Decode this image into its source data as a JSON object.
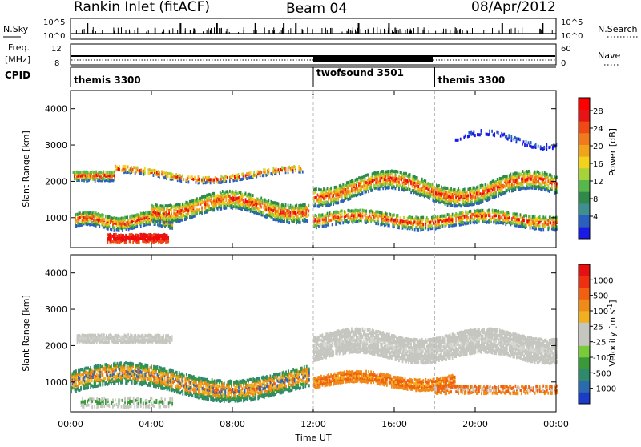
{
  "header": {
    "station": "Rankin Inlet (fitACF)",
    "beam": "Beam 04",
    "date": "08/Apr/2012"
  },
  "summary": {
    "nsky_label": "N.Sky",
    "nsearch_label": "N.Search",
    "nsky_ticks": [
      "10^5",
      "10^0"
    ],
    "nsearch_ticks": [
      "10^5",
      "10^0"
    ],
    "freq_label": "Freq.",
    "freq_unit": "[MHz]",
    "freq_ticks": [
      "12",
      "8"
    ],
    "nave_label": "Nave",
    "nave_ticks": [
      "60",
      "0"
    ],
    "cpid_label": "CPID",
    "cpid_segments": [
      {
        "name": "themis 3300",
        "start": 0,
        "end": 12
      },
      {
        "name": "twofsound 3501",
        "start": 12,
        "end": 18
      },
      {
        "name": "themis 3300",
        "start": 18,
        "end": 24
      }
    ]
  },
  "chart_data": [
    {
      "type": "heatmap",
      "panel": "power",
      "ylabel": "Slant Range [km]",
      "ylim": [
        180,
        4500
      ],
      "yticks": [
        1000,
        2000,
        3000,
        4000
      ],
      "xlim": [
        0,
        24
      ],
      "colorbar": {
        "label": "Power [dB]",
        "ticks": [
          "4",
          "8",
          "12",
          "16",
          "20",
          "24",
          "28"
        ],
        "colors": [
          "#1a1ae6",
          "#2a5fc0",
          "#3e8f8f",
          "#2f8a4a",
          "#56b84a",
          "#a6d23a",
          "#f2d21a",
          "#f0a41c",
          "#f07a1c",
          "#ef4a16",
          "#e61414",
          "#ff0000"
        ]
      }
    },
    {
      "type": "heatmap",
      "panel": "velocity",
      "ylabel": "Slant Range [km]",
      "ylim": [
        180,
        4500
      ],
      "yticks": [
        1000,
        2000,
        3000,
        4000
      ],
      "xlim": [
        0,
        24
      ],
      "colorbar": {
        "label": "Velocity [m s^-1]",
        "ticks": [
          "1000",
          "500",
          "100",
          "25",
          "-25",
          "-100",
          "-500",
          "-1000"
        ],
        "colors": [
          "#1a3cc8",
          "#2c6ab0",
          "#2f8a6a",
          "#3a9a3a",
          "#7acb3a",
          "#c6c6c0",
          "#c6c6c0",
          "#f0b020",
          "#f08a18",
          "#f06010",
          "#ef3010",
          "#e61010"
        ]
      }
    }
  ],
  "xaxis": {
    "ticks": [
      "00:00",
      "04:00",
      "08:00",
      "12:00",
      "16:00",
      "20:00",
      "00:00"
    ],
    "label": "Time UT"
  }
}
